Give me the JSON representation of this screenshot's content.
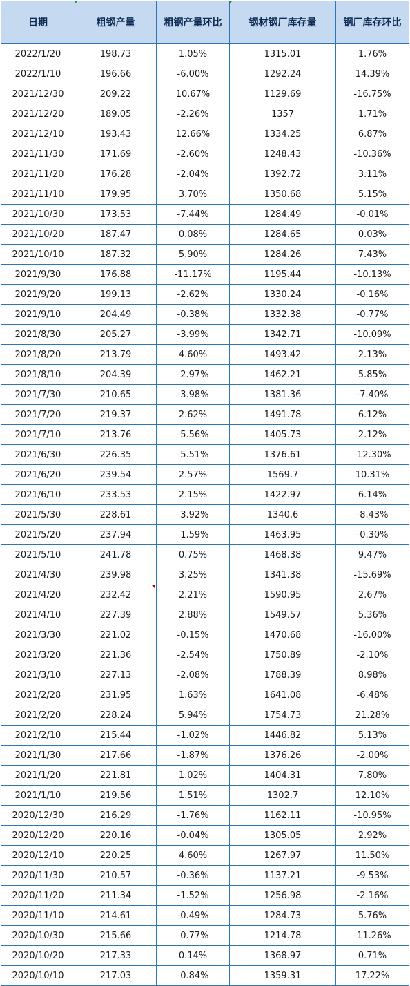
{
  "headers": [
    "日期",
    "粗钢产量",
    "粗钢产量环比",
    "钢材钢厂库存量",
    "钢厂库存环比"
  ],
  "colors": {
    "positive": "#ff0000",
    "negative": "#00b050",
    "header_bg": "#c5d9f1",
    "border": "#2e75b6"
  },
  "rows": [
    [
      "2022/1/20",
      "198.73",
      "1.05%",
      "1315.01",
      "1.76%"
    ],
    [
      "2022/1/10",
      "196.66",
      "-6.00%",
      "1292.24",
      "14.39%"
    ],
    [
      "2021/12/30",
      "209.22",
      "10.67%",
      "1129.69",
      "-16.75%"
    ],
    [
      "2021/12/20",
      "189.05",
      "-2.26%",
      "1357",
      "1.71%"
    ],
    [
      "2021/12/10",
      "193.43",
      "12.66%",
      "1334.25",
      "6.87%"
    ],
    [
      "2021/11/30",
      "171.69",
      "-2.60%",
      "1248.43",
      "-10.36%"
    ],
    [
      "2021/11/20",
      "176.28",
      "-2.04%",
      "1392.72",
      "3.11%"
    ],
    [
      "2021/11/10",
      "179.95",
      "3.70%",
      "1350.68",
      "5.15%"
    ],
    [
      "2021/10/30",
      "173.53",
      "-7.44%",
      "1284.49",
      "-0.01%"
    ],
    [
      "2021/10/20",
      "187.47",
      "0.08%",
      "1284.65",
      "0.03%"
    ],
    [
      "2021/10/10",
      "187.32",
      "5.90%",
      "1284.26",
      "7.43%"
    ],
    [
      "2021/9/30",
      "176.88",
      "-11.17%",
      "1195.44",
      "-10.13%"
    ],
    [
      "2021/9/20",
      "199.13",
      "-2.62%",
      "1330.24",
      "-0.16%"
    ],
    [
      "2021/9/10",
      "204.49",
      "-0.38%",
      "1332.38",
      "-0.77%"
    ],
    [
      "2021/8/30",
      "205.27",
      "-3.99%",
      "1342.71",
      "-10.09%"
    ],
    [
      "2021/8/20",
      "213.79",
      "4.60%",
      "1493.42",
      "2.13%"
    ],
    [
      "2021/8/10",
      "204.39",
      "-2.97%",
      "1462.21",
      "5.85%"
    ],
    [
      "2021/7/30",
      "210.65",
      "-3.98%",
      "1381.36",
      "-7.40%"
    ],
    [
      "2021/7/20",
      "219.37",
      "2.62%",
      "1491.78",
      "6.12%"
    ],
    [
      "2021/7/10",
      "213.76",
      "-5.56%",
      "1405.73",
      "2.12%"
    ],
    [
      "2021/6/30",
      "226.35",
      "-5.51%",
      "1376.61",
      "-12.30%"
    ],
    [
      "2021/6/20",
      "239.54",
      "2.57%",
      "1569.7",
      "10.31%"
    ],
    [
      "2021/6/10",
      "233.53",
      "2.15%",
      "1422.97",
      "6.14%"
    ],
    [
      "2021/5/30",
      "228.61",
      "-3.92%",
      "1340.6",
      "-8.43%"
    ],
    [
      "2021/5/20",
      "237.94",
      "-1.59%",
      "1463.95",
      "-0.30%"
    ],
    [
      "2021/5/10",
      "241.78",
      "0.75%",
      "1468.38",
      "9.47%"
    ],
    [
      "2021/4/30",
      "239.98",
      "3.25%",
      "1341.38",
      "-15.69%"
    ],
    [
      "2021/4/20",
      "232.42",
      "2.21%",
      "1590.95",
      "2.67%"
    ],
    [
      "2021/4/10",
      "227.39",
      "2.88%",
      "1549.57",
      "5.36%"
    ],
    [
      "2021/3/30",
      "221.02",
      "-0.15%",
      "1470.68",
      "-16.00%"
    ],
    [
      "2021/3/20",
      "221.36",
      "-2.54%",
      "1750.89",
      "-2.10%"
    ],
    [
      "2021/3/10",
      "227.13",
      "-2.08%",
      "1788.39",
      "8.98%"
    ],
    [
      "2021/2/28",
      "231.95",
      "1.63%",
      "1641.08",
      "-6.48%"
    ],
    [
      "2021/2/20",
      "228.24",
      "5.94%",
      "1754.73",
      "21.28%"
    ],
    [
      "2021/2/10",
      "215.44",
      "-1.02%",
      "1446.82",
      "5.13%"
    ],
    [
      "2021/1/30",
      "217.66",
      "-1.87%",
      "1376.26",
      "-2.00%"
    ],
    [
      "2021/1/20",
      "221.81",
      "1.02%",
      "1404.31",
      "7.80%"
    ],
    [
      "2021/1/10",
      "219.56",
      "1.51%",
      "1302.7",
      "12.10%"
    ],
    [
      "2020/12/30",
      "216.29",
      "-1.76%",
      "1162.11",
      "-10.95%"
    ],
    [
      "2020/12/20",
      "220.16",
      "-0.04%",
      "1305.05",
      "2.92%"
    ],
    [
      "2020/12/10",
      "220.25",
      "4.60%",
      "1267.97",
      "11.50%"
    ],
    [
      "2020/11/30",
      "210.57",
      "-0.36%",
      "1137.21",
      "-9.53%"
    ],
    [
      "2020/11/20",
      "211.34",
      "-1.52%",
      "1256.98",
      "-2.16%"
    ],
    [
      "2020/11/10",
      "214.61",
      "-0.49%",
      "1284.73",
      "5.76%"
    ],
    [
      "2020/10/30",
      "215.66",
      "-0.77%",
      "1214.78",
      "-11.26%"
    ],
    [
      "2020/10/20",
      "217.33",
      "0.14%",
      "1368.97",
      "0.71%"
    ],
    [
      "2020/10/10",
      "217.03",
      "-0.84%",
      "1359.31",
      "17.22%"
    ]
  ]
}
